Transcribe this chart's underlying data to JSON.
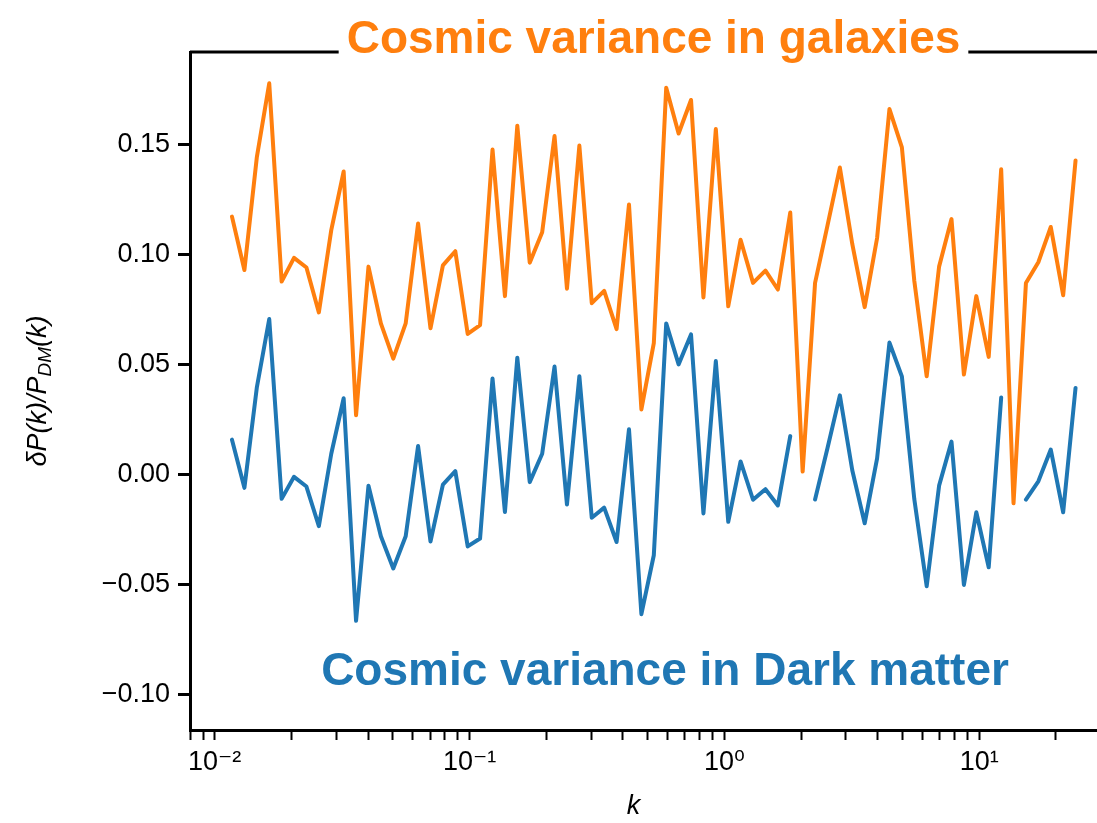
{
  "chart_data": {
    "type": "line",
    "xlabel": "k",
    "ylabel": "δP(k)/P$_{DM}$(k)",
    "log": "x",
    "grid": false,
    "legend": false,
    "marker": "none",
    "line_style": "solid",
    "x": [
      0.01169,
      0.01308,
      0.01463,
      0.01637,
      0.01831,
      0.02048,
      0.02291,
      0.02563,
      0.02867,
      0.03207,
      0.03587,
      0.04013,
      0.04489,
      0.05021,
      0.05617,
      0.06283,
      0.07028,
      0.07862,
      0.08795,
      0.09838,
      0.11,
      0.1231,
      0.1377,
      0.154,
      0.1723,
      0.1928,
      0.2156,
      0.2412,
      0.2698,
      0.3018,
      0.3376,
      0.3777,
      0.4225,
      0.4726,
      0.5287,
      0.5914,
      0.6615,
      0.74,
      0.8278,
      0.9259,
      1.036,
      1.158,
      1.296,
      1.45,
      1.622,
      1.814,
      2.029,
      2.27,
      2.539,
      2.84,
      3.177,
      3.554,
      3.976,
      4.446,
      4.974,
      5.564,
      6.224,
      6.962,
      7.788,
      8.712,
      9.745,
      10.9,
      12.2,
      13.64,
      15.26,
      17.07,
      19.1,
      21.36,
      23.89
    ],
    "series": [
      {
        "name": "Cosmic variance in galaxies",
        "color": "#ff7f0e",
        "values": [
          0.1172,
          0.093,
          0.1441,
          0.1778,
          0.0877,
          0.0985,
          0.0941,
          0.0737,
          0.1111,
          0.1377,
          0.027,
          0.0945,
          0.0687,
          0.0527,
          0.0687,
          0.1141,
          0.0665,
          0.0951,
          0.1015,
          0.0639,
          0.0679,
          0.1477,
          0.0811,
          0.1585,
          0.0963,
          0.1101,
          0.1538,
          0.0845,
          0.1495,
          0.0779,
          0.0835,
          0.0661,
          0.1227,
          0.0296,
          0.0597,
          0.1758,
          0.155,
          0.1702,
          0.0805,
          0.157,
          0.0765,
          0.1067,
          0.0871,
          0.0927,
          0.0841,
          0.1191,
          0.0014,
          0.0871,
          0.1131,
          0.1395,
          0.1048,
          0.0761,
          0.1075,
          0.1661,
          0.1487,
          0.0881,
          0.0447,
          0.0945,
          0.1161,
          0.0455,
          0.0811,
          0.0535,
          0.1387,
          -0.013,
          0.0871,
          0.0965,
          0.1125,
          0.0815,
          0.1427
        ]
      },
      {
        "name": "Cosmic variance in Dark matter",
        "color": "#1f77b4",
        "values": [
          0.0159,
          -0.006,
          0.0395,
          0.0707,
          -0.011,
          -0.001,
          -0.0054,
          -0.0234,
          0.0095,
          0.0347,
          -0.0664,
          -0.005,
          -0.028,
          -0.0426,
          -0.028,
          0.013,
          -0.0304,
          -0.0045,
          0.0016,
          -0.0326,
          -0.029,
          0.0437,
          -0.017,
          0.0531,
          -0.0034,
          0.0095,
          0.0491,
          -0.0136,
          0.0447,
          -0.0196,
          -0.015,
          -0.0306,
          0.0206,
          -0.0634,
          -0.0366,
          0.0687,
          0.0501,
          0.0637,
          -0.0176,
          0.0516,
          -0.0214,
          0.006,
          -0.0114,
          -0.0066,
          -0.014,
          0.0175,
          null,
          -0.0113,
          0.012,
          0.036,
          0.002,
          -0.0221,
          0.0074,
          0.06,
          0.0446,
          -0.0111,
          -0.0507,
          -0.005,
          0.015,
          -0.0501,
          -0.0171,
          -0.0421,
          0.035,
          null,
          -0.0113,
          -0.003,
          0.0114,
          -0.0171,
          0.0394
        ]
      }
    ],
    "xlim": [
      0.008,
      29
    ],
    "xticks": [
      {
        "value": 0.008,
        "label": null
      },
      {
        "value": 0.009,
        "label": null
      },
      {
        "value": 0.01,
        "label": "10⁻²"
      },
      {
        "value": 0.02,
        "label": null
      },
      {
        "value": 0.03,
        "label": null
      },
      {
        "value": 0.04,
        "label": null
      },
      {
        "value": 0.05,
        "label": null
      },
      {
        "value": 0.06,
        "label": null
      },
      {
        "value": 0.07,
        "label": null
      },
      {
        "value": 0.08,
        "label": null
      },
      {
        "value": 0.09,
        "label": null
      },
      {
        "value": 0.1,
        "label": "10⁻¹"
      },
      {
        "value": 0.2,
        "label": null
      },
      {
        "value": 0.3,
        "label": null
      },
      {
        "value": 0.4,
        "label": null
      },
      {
        "value": 0.5,
        "label": null
      },
      {
        "value": 0.6,
        "label": null
      },
      {
        "value": 0.7,
        "label": null
      },
      {
        "value": 0.8,
        "label": null
      },
      {
        "value": 0.9,
        "label": null
      },
      {
        "value": 1,
        "label": "10⁰"
      },
      {
        "value": 2,
        "label": null
      },
      {
        "value": 3,
        "label": null
      },
      {
        "value": 4,
        "label": null
      },
      {
        "value": 5,
        "label": null
      },
      {
        "value": 6,
        "label": null
      },
      {
        "value": 7,
        "label": null
      },
      {
        "value": 8,
        "label": null
      },
      {
        "value": 9,
        "label": null
      },
      {
        "value": 10,
        "label": "10¹"
      },
      {
        "value": 20,
        "label": null
      }
    ],
    "ylim": [
      -0.116,
      0.192
    ],
    "yticks": [
      {
        "value": -0.1,
        "label": "−0.10"
      },
      {
        "value": -0.05,
        "label": "−0.05"
      },
      {
        "value": 0,
        "label": "0.00"
      },
      {
        "value": 0.05,
        "label": "0.05"
      },
      {
        "value": 0.1,
        "label": "0.10"
      },
      {
        "value": 0.15,
        "label": "0.15"
      }
    ]
  }
}
